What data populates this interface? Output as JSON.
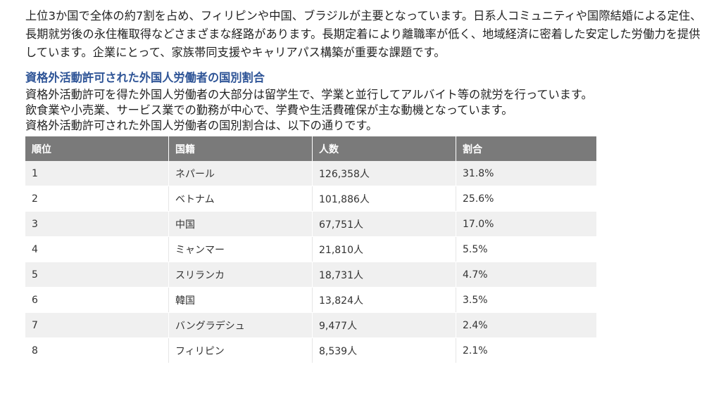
{
  "intro_text": "上位3か国で全体の約7割を占め、フィリピンや中国、ブラジルが主要となっています。日系人コミュニティや国際結婚による定住、長期就労後の永住権取得などさまざまな経路があります。長期定着により離職率が低く、地域経済に密着した安定した労働力を提供しています。企業にとって、家族帯同支援やキャリアパス構築が重要な課題です。",
  "section": {
    "heading": "資格外活動許可された外国人労働者の国別割合",
    "lines": [
      "資格外活動許可を得た外国人労働者の大部分は留学生で、学業と並行してアルバイト等の就労を行っています。",
      "飲食業や小売業、サービス業での勤務が中心で、学費や生活費確保が主な動機となっています。",
      "資格外活動許可された外国人労働者の国別割合は、以下の通りです。"
    ]
  },
  "table": {
    "headers": [
      "順位",
      "国籍",
      "人数",
      "割合"
    ],
    "rows": [
      [
        "1",
        "ネパール",
        "126,358人",
        "31.8%"
      ],
      [
        "2",
        "ベトナム",
        "101,886人",
        "25.6%"
      ],
      [
        "3",
        "中国",
        "67,751人",
        "17.0%"
      ],
      [
        "4",
        "ミャンマー",
        "21,810人",
        "5.5%"
      ],
      [
        "5",
        "スリランカ",
        "18,731人",
        "4.7%"
      ],
      [
        "6",
        "韓国",
        "13,824人",
        "3.5%"
      ],
      [
        "7",
        "バングラデシュ",
        "9,477人",
        "2.4%"
      ],
      [
        "8",
        "フィリピン",
        "8,539人",
        "2.1%"
      ]
    ]
  }
}
